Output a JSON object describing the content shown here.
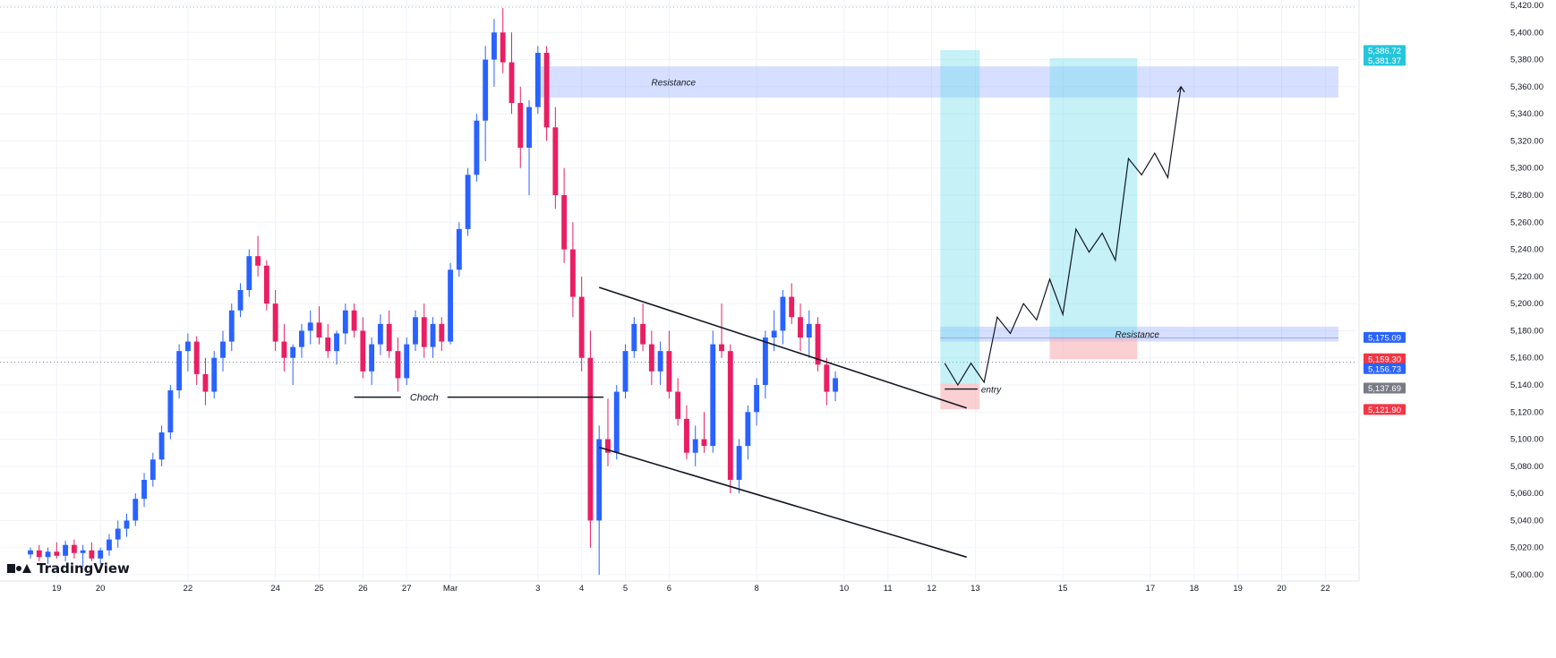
{
  "brand": {
    "name": "TradingView"
  },
  "chart_data": {
    "type": "candlestick",
    "price_axis": {
      "ticks": [
        "5,420.00",
        "5,400.00",
        "5,380.00",
        "5,360.00",
        "5,340.00",
        "5,320.00",
        "5,300.00",
        "5,280.00",
        "5,260.00",
        "5,240.00",
        "5,220.00",
        "5,200.00",
        "5,180.00",
        "5,160.00",
        "5,140.00",
        "5,120.00",
        "5,100.00",
        "5,080.00",
        "5,060.00",
        "5,040.00",
        "5,020.00",
        "5,000.00"
      ],
      "range": [
        4995,
        5425
      ],
      "tick_step": 20
    },
    "time_axis": {
      "labels": [
        "19",
        "20",
        "22",
        "24",
        "25",
        "26",
        "27",
        "Mar",
        "3",
        "4",
        "5",
        "6",
        "8",
        "10",
        "11",
        "12",
        "13",
        "15",
        "17",
        "18",
        "19",
        "20",
        "22"
      ],
      "label_positions_days": [
        -15,
        -14,
        -12,
        -10,
        -9,
        -8,
        -7,
        -6,
        -4,
        -3,
        -2,
        -1,
        1,
        3,
        4,
        5,
        6,
        8,
        10,
        11,
        12,
        13,
        14
      ],
      "range_days": [
        -15.6,
        14.3
      ],
      "grid": true
    },
    "price_labels": [
      {
        "text": "5,386.72",
        "value": 5386.72,
        "color": "#26c6da"
      },
      {
        "text": "5,381.37",
        "value": 5381.37,
        "color": "#26c6da"
      },
      {
        "text": "5,175.09",
        "value": 5175.09,
        "color": "#2962ff"
      },
      {
        "text": "5,159.30",
        "value": 5159.3,
        "color": "#f23645"
      },
      {
        "text": "5,156.73",
        "value": 5156.73,
        "color": "#2962ff"
      },
      {
        "text": "5,137.69",
        "value": 5137.69,
        "color": "#787b86"
      },
      {
        "text": "5,121.90",
        "value": 5121.9,
        "color": "#f23645"
      }
    ],
    "current_price": 5156.73,
    "candles": [
      [
        -15.6,
        5015,
        5020,
        5012,
        5018
      ],
      [
        -15.4,
        5018,
        5022,
        5010,
        5013
      ],
      [
        -15.2,
        5013,
        5020,
        5008,
        5017
      ],
      [
        -15.0,
        5017,
        5024,
        5012,
        5014
      ],
      [
        -14.8,
        5014,
        5025,
        5010,
        5022
      ],
      [
        -14.6,
        5022,
        5026,
        5012,
        5016
      ],
      [
        -14.4,
        5016,
        5022,
        5006,
        5018
      ],
      [
        -14.2,
        5018,
        5024,
        5010,
        5012
      ],
      [
        -14.0,
        5012,
        5020,
        5008,
        5018
      ],
      [
        -13.8,
        5018,
        5030,
        5014,
        5026
      ],
      [
        -13.6,
        5026,
        5040,
        5020,
        5034
      ],
      [
        -13.4,
        5034,
        5045,
        5028,
        5040
      ],
      [
        -13.2,
        5040,
        5060,
        5036,
        5056
      ],
      [
        -13.0,
        5056,
        5075,
        5050,
        5070
      ],
      [
        -12.8,
        5070,
        5090,
        5065,
        5085
      ],
      [
        -12.6,
        5085,
        5110,
        5080,
        5105
      ],
      [
        -12.4,
        5105,
        5140,
        5100,
        5136
      ],
      [
        -12.2,
        5136,
        5170,
        5130,
        5165
      ],
      [
        -12.0,
        5165,
        5178,
        5150,
        5172
      ],
      [
        -11.8,
        5172,
        5176,
        5140,
        5148
      ],
      [
        -11.6,
        5148,
        5160,
        5125,
        5135
      ],
      [
        -11.4,
        5135,
        5165,
        5130,
        5160
      ],
      [
        -11.2,
        5160,
        5180,
        5150,
        5172
      ],
      [
        -11.0,
        5172,
        5200,
        5165,
        5195
      ],
      [
        -10.8,
        5195,
        5215,
        5190,
        5210
      ],
      [
        -10.6,
        5210,
        5240,
        5205,
        5235
      ],
      [
        -10.4,
        5235,
        5250,
        5220,
        5228
      ],
      [
        -10.2,
        5228,
        5232,
        5195,
        5200
      ],
      [
        -10.0,
        5200,
        5210,
        5165,
        5172
      ],
      [
        -9.8,
        5172,
        5185,
        5150,
        5160
      ],
      [
        -9.6,
        5160,
        5170,
        5140,
        5168
      ],
      [
        -9.4,
        5168,
        5185,
        5160,
        5180
      ],
      [
        -9.2,
        5180,
        5195,
        5170,
        5186
      ],
      [
        -9.0,
        5186,
        5198,
        5170,
        5175
      ],
      [
        -8.8,
        5175,
        5185,
        5160,
        5165
      ],
      [
        -8.6,
        5165,
        5180,
        5155,
        5178
      ],
      [
        -8.4,
        5178,
        5200,
        5170,
        5195
      ],
      [
        -8.2,
        5195,
        5200,
        5175,
        5180
      ],
      [
        -8.0,
        5180,
        5190,
        5145,
        5150
      ],
      [
        -7.8,
        5150,
        5175,
        5140,
        5170
      ],
      [
        -7.6,
        5170,
        5192,
        5162,
        5185
      ],
      [
        -7.4,
        5185,
        5195,
        5160,
        5165
      ],
      [
        -7.2,
        5165,
        5175,
        5135,
        5145
      ],
      [
        -7.0,
        5145,
        5175,
        5140,
        5170
      ],
      [
        -6.8,
        5170,
        5195,
        5165,
        5190
      ],
      [
        -6.6,
        5190,
        5200,
        5160,
        5168
      ],
      [
        -6.4,
        5168,
        5190,
        5160,
        5185
      ],
      [
        -6.2,
        5185,
        5190,
        5165,
        5172
      ],
      [
        -6.0,
        5172,
        5230,
        5170,
        5225
      ],
      [
        -5.8,
        5225,
        5260,
        5220,
        5255
      ],
      [
        -5.6,
        5255,
        5300,
        5250,
        5295
      ],
      [
        -5.4,
        5295,
        5340,
        5290,
        5335
      ],
      [
        -5.2,
        5335,
        5390,
        5305,
        5380
      ],
      [
        -5.0,
        5380,
        5410,
        5360,
        5400
      ],
      [
        -4.8,
        5400,
        5418,
        5370,
        5378
      ],
      [
        -4.6,
        5378,
        5400,
        5340,
        5348
      ],
      [
        -4.4,
        5348,
        5360,
        5300,
        5315
      ],
      [
        -4.2,
        5315,
        5350,
        5280,
        5345
      ],
      [
        -4.0,
        5345,
        5390,
        5340,
        5385
      ],
      [
        -3.8,
        5385,
        5390,
        5320,
        5330
      ],
      [
        -3.6,
        5330,
        5345,
        5270,
        5280
      ],
      [
        -3.4,
        5280,
        5300,
        5230,
        5240
      ],
      [
        -3.2,
        5240,
        5260,
        5190,
        5205
      ],
      [
        -3.0,
        5205,
        5220,
        5150,
        5160
      ],
      [
        -2.8,
        5160,
        5180,
        5020,
        5040
      ],
      [
        -2.6,
        5040,
        5110,
        5000,
        5100
      ],
      [
        -2.4,
        5100,
        5130,
        5080,
        5090
      ],
      [
        -2.2,
        5090,
        5140,
        5085,
        5135
      ],
      [
        -2.0,
        5135,
        5170,
        5130,
        5165
      ],
      [
        -1.8,
        5165,
        5190,
        5160,
        5185
      ],
      [
        -1.6,
        5185,
        5200,
        5165,
        5170
      ],
      [
        -1.4,
        5170,
        5180,
        5140,
        5150
      ],
      [
        -1.2,
        5150,
        5172,
        5140,
        5165
      ],
      [
        -1.0,
        5165,
        5180,
        5130,
        5135
      ],
      [
        -0.8,
        5135,
        5145,
        5110,
        5115
      ],
      [
        -0.6,
        5115,
        5125,
        5085,
        5090
      ],
      [
        -0.4,
        5090,
        5110,
        5080,
        5100
      ],
      [
        -0.2,
        5100,
        5120,
        5090,
        5095
      ],
      [
        0.0,
        5095,
        5180,
        5090,
        5170
      ],
      [
        0.2,
        5170,
        5200,
        5160,
        5165
      ],
      [
        0.4,
        5165,
        5170,
        5060,
        5070
      ],
      [
        0.6,
        5070,
        5100,
        5060,
        5095
      ],
      [
        0.8,
        5095,
        5125,
        5085,
        5120
      ],
      [
        1.0,
        5120,
        5145,
        5110,
        5140
      ],
      [
        1.2,
        5140,
        5180,
        5130,
        5175
      ],
      [
        1.4,
        5175,
        5195,
        5165,
        5180
      ],
      [
        1.6,
        5180,
        5210,
        5170,
        5205
      ],
      [
        1.8,
        5205,
        5215,
        5185,
        5190
      ],
      [
        2.0,
        5190,
        5200,
        5165,
        5175
      ],
      [
        2.2,
        5175,
        5195,
        5160,
        5185
      ],
      [
        2.4,
        5185,
        5190,
        5150,
        5155
      ],
      [
        2.6,
        5155,
        5160,
        5125,
        5135
      ],
      [
        2.8,
        5135,
        5150,
        5128,
        5145
      ]
    ],
    "zones": [
      {
        "type": "resistance",
        "from_day": -4.0,
        "to_day": 14.3,
        "top": 5375,
        "bottom": 5352,
        "color": "rgba(118,148,255,0.30)"
      },
      {
        "type": "resistance",
        "from_day": 5.2,
        "to_day": 14.3,
        "top": 5183,
        "bottom": 5172,
        "color": "rgba(118,148,255,0.30)"
      },
      {
        "type": "target",
        "from_day": 5.2,
        "to_day": 6.1,
        "top": 5387,
        "bottom": 5141,
        "color": "rgba(110,220,235,0.40)"
      },
      {
        "type": "stop",
        "from_day": 5.2,
        "to_day": 6.1,
        "top": 5141,
        "bottom": 5122,
        "color": "rgba(247,170,175,0.55)"
      },
      {
        "type": "target",
        "from_day": 7.7,
        "to_day": 9.7,
        "top": 5381,
        "bottom": 5175,
        "color": "rgba(110,220,235,0.40)"
      },
      {
        "type": "stop",
        "from_day": 7.7,
        "to_day": 9.7,
        "top": 5175,
        "bottom": 5159,
        "color": "rgba(247,170,175,0.55)"
      }
    ],
    "channel_lines": [
      {
        "from": [
          -2.6,
          5212
        ],
        "to": [
          5.8,
          5123
        ]
      },
      {
        "from": [
          -2.6,
          5094
        ],
        "to": [
          5.8,
          5013
        ]
      }
    ],
    "projection_path": [
      [
        5.3,
        5156
      ],
      [
        5.6,
        5140
      ],
      [
        5.9,
        5156
      ],
      [
        6.2,
        5142
      ],
      [
        6.5,
        5190
      ],
      [
        6.8,
        5178
      ],
      [
        7.1,
        5200
      ],
      [
        7.4,
        5188
      ],
      [
        7.7,
        5218
      ],
      [
        8.0,
        5192
      ],
      [
        8.3,
        5255
      ],
      [
        8.6,
        5238
      ],
      [
        8.9,
        5252
      ],
      [
        9.2,
        5232
      ],
      [
        9.5,
        5307
      ],
      [
        9.8,
        5295
      ],
      [
        10.1,
        5311
      ],
      [
        10.4,
        5293
      ],
      [
        10.7,
        5360
      ]
    ],
    "annotations": [
      {
        "text": "Resistance",
        "day": -0.9,
        "price": 5363
      },
      {
        "text": "Resistance",
        "day": 9.7,
        "price": 5177
      },
      {
        "text": "Choch",
        "day": -6.6,
        "price": 5131,
        "line_from_day": -8.2,
        "line_to_day": -2.5
      },
      {
        "text": "entry",
        "day": 6.05,
        "price": 5137,
        "line_from_day": 5.3,
        "line_to_day": 6.05
      }
    ]
  }
}
